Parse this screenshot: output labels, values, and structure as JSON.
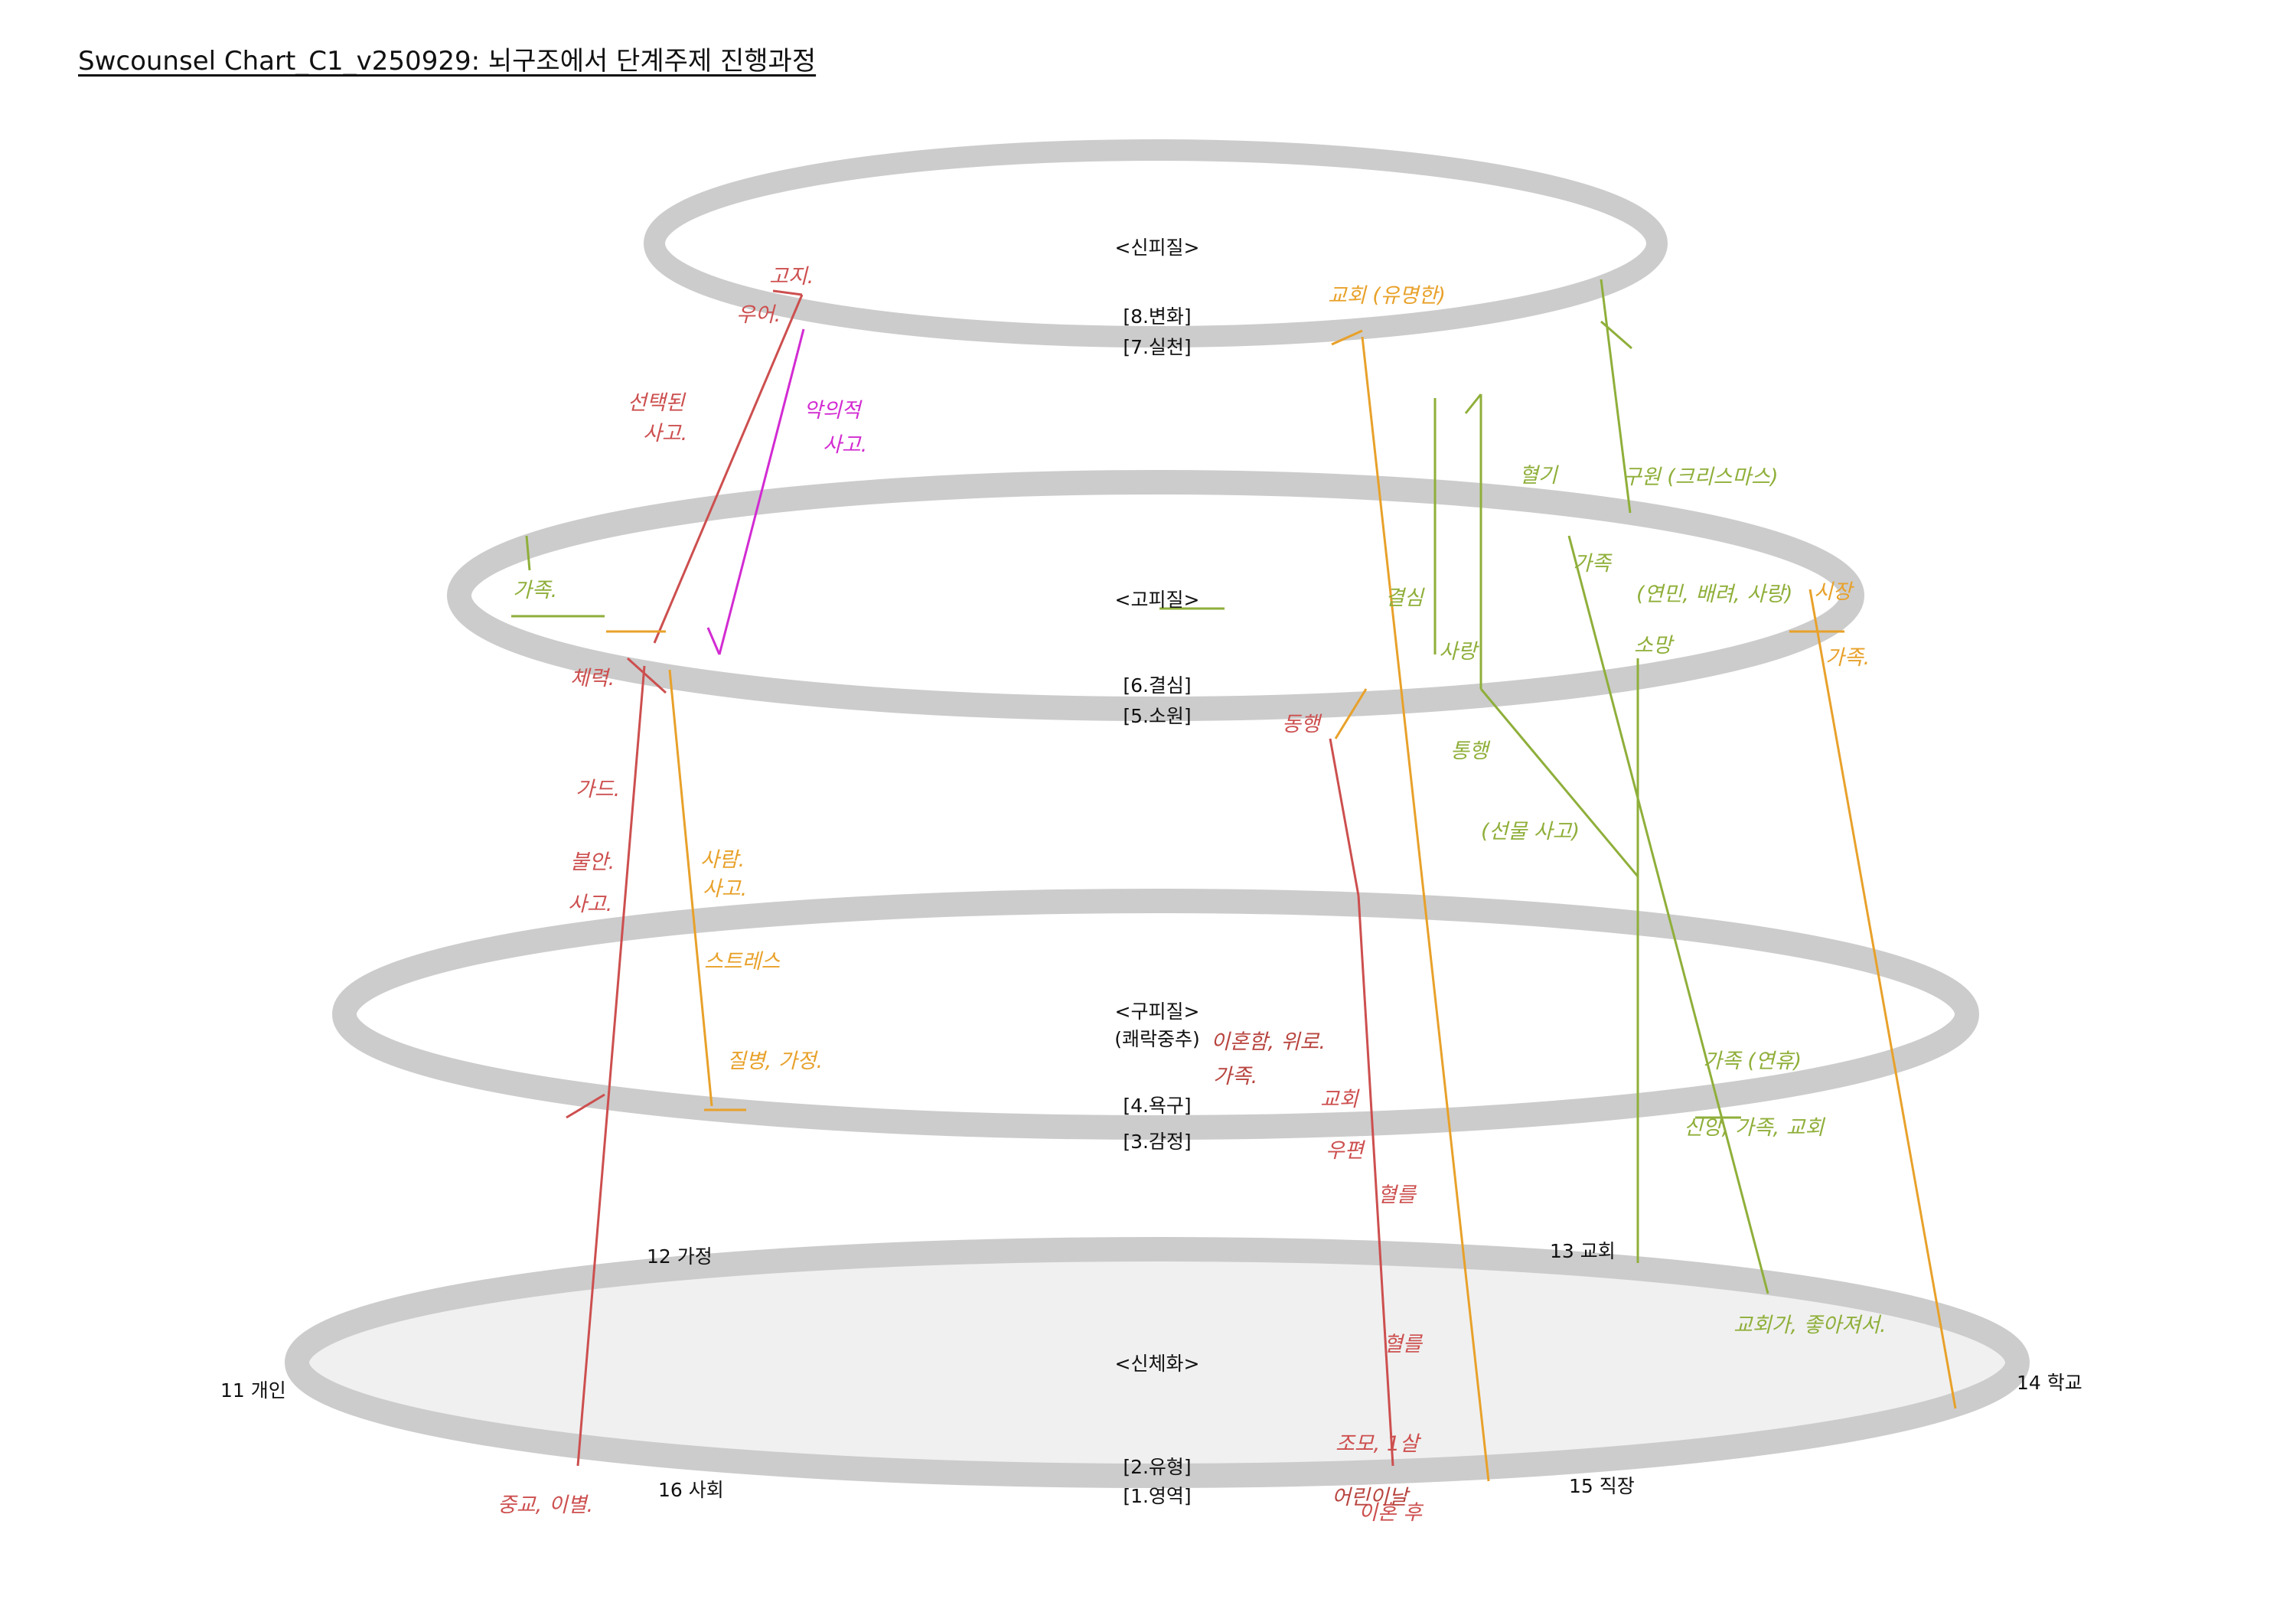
{
  "title": "Swcounsel Chart_C1_v250929: 뇌구조에서 단계주제 진행과정",
  "colors": {
    "ring": "#cccccc",
    "base_fill": "#f0f0f0",
    "red": "#cd4f4f",
    "orange": "#e8a12a",
    "green": "#8faf3a",
    "magenta": "#d22bd2",
    "dark_red": "#b8453f"
  },
  "layers": {
    "neocortex": {
      "name": "<신피질>",
      "upper": "[8.변화]",
      "lower": "[7.실천]"
    },
    "paleocortex": {
      "name": "<고피질>",
      "upper": "[6.결심]",
      "lower": "[5.소원]"
    },
    "archicortex": {
      "name": "<구피질>",
      "sub": "(쾌락중추)",
      "upper": "[4.욕구]",
      "lower": "[3.감정]"
    },
    "somatization": {
      "name": "<신체화>",
      "upper": "[2.유형]",
      "lower": "[1.영역]"
    }
  },
  "domains": [
    "11 개인",
    "12 가정",
    "13 교회",
    "14 학교",
    "15 직장",
    "16 사회"
  ],
  "annotations": {
    "red": [
      "고지.",
      "우어.",
      "선택된",
      "사고.",
      "체력.",
      "가드.",
      "불안.",
      "사고.",
      "중교, 이별.",
      "동행",
      "교회",
      "우편",
      "혈를",
      "혈를",
      "조모, 1살",
      "이혼 후"
    ],
    "orange": [
      "교회 (유명한)",
      "사람.",
      "사고.",
      "스트레스",
      "질병, 가정.",
      "시장",
      "가족."
    ],
    "green": [
      "가족.",
      "혈기",
      "구원 (크리스마스)",
      "가족",
      "(연민, 배려, 사랑)",
      "소망",
      "결심",
      "사랑",
      "통행",
      "(선물 사고)",
      "가족 (연휴)",
      "신앙, 가족, 교회",
      "교회가, 좋아져서."
    ],
    "magenta": [
      "악의적",
      "사고."
    ],
    "dark": [
      "이혼함, 위로.",
      "어린이날",
      "가족."
    ]
  }
}
